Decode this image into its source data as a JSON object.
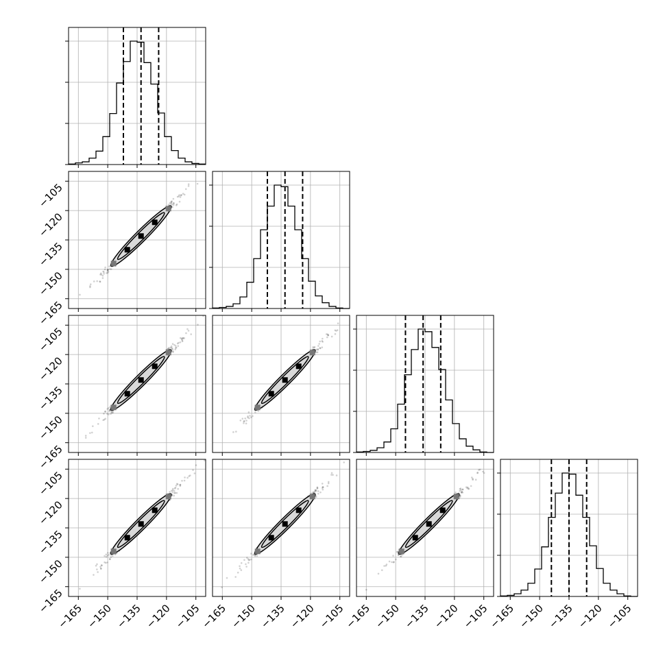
{
  "chart_data": {
    "type": "corner",
    "variables": 4,
    "grid": true,
    "colors": {
      "line": "#000000",
      "grid": "#b0b0b0",
      "fill": "#d9d9d9"
    },
    "axis_ticks": [
      -165,
      -150,
      -135,
      -120,
      -105
    ],
    "axis_tick_labels": [
      "−165",
      "−150",
      "−135",
      "−120",
      "−105"
    ],
    "axis_ranges": [
      [
        -170,
        -100
      ],
      [
        -170,
        -100
      ],
      [
        -170,
        -100
      ],
      [
        -170,
        -100
      ]
    ],
    "hist_bin_edges": [
      -170,
      -166.5,
      -163,
      -159.5,
      -156,
      -152.5,
      -149,
      -145.5,
      -142,
      -138.5,
      -135,
      -131.5,
      -128,
      -124.5,
      -121,
      -117.5,
      -114,
      -110.5,
      -107,
      -103.5,
      -100
    ],
    "histograms": [
      {
        "counts": [
          1,
          3,
          5,
          12,
          25,
          52,
          95,
          152,
          192,
          230,
          228,
          190,
          150,
          96,
          52,
          26,
          12,
          5,
          2,
          1
        ],
        "quantiles": [
          -142,
          -133,
          -124
        ]
      },
      {
        "counts": [
          1,
          2,
          4,
          9,
          22,
          50,
          95,
          150,
          195,
          235,
          232,
          195,
          150,
          95,
          52,
          24,
          11,
          4,
          1,
          0
        ],
        "quantiles": [
          -142,
          -133,
          -124
        ]
      },
      {
        "counts": [
          1,
          2,
          4,
          9,
          20,
          45,
          92,
          148,
          196,
          235,
          230,
          200,
          158,
          100,
          55,
          26,
          12,
          5,
          1,
          0
        ],
        "quantiles": [
          -145,
          -136,
          -127
        ]
      },
      {
        "counts": [
          1,
          2,
          5,
          12,
          25,
          52,
          94,
          150,
          196,
          234,
          232,
          192,
          150,
          96,
          53,
          25,
          12,
          5,
          1,
          0
        ],
        "quantiles": [
          -144,
          -135,
          -126
        ]
      }
    ],
    "pair_correlation": 0.995,
    "pair_center": [
      -133,
      -133
    ],
    "pair_sigma": 7.5
  }
}
